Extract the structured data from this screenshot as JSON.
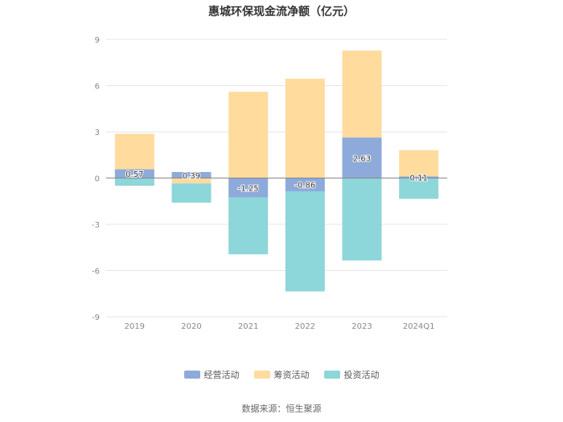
{
  "chart_data": {
    "type": "bar",
    "stacked": true,
    "title": "惠城环保现金流净额（亿元）",
    "xlabel": "",
    "ylabel": "",
    "categories": [
      "2019",
      "2020",
      "2021",
      "2022",
      "2023",
      "2024Q1"
    ],
    "ylim": [
      -9,
      9
    ],
    "yticks": [
      9,
      6,
      3,
      0,
      -3,
      -6,
      -9
    ],
    "grid": true,
    "legend_position": "bottom",
    "series": [
      {
        "name": "经营活动",
        "color": "#8eaadb",
        "values": [
          0.57,
          0.39,
          -1.25,
          -0.86,
          2.63,
          0.11
        ],
        "labels": [
          "0.57",
          "0.39",
          "-1.25",
          "-0.86",
          "2.63",
          "0.11"
        ]
      },
      {
        "name": "筹资活动",
        "color": "#ffdb9e",
        "values": [
          2.3,
          -0.35,
          5.6,
          6.45,
          5.65,
          1.7
        ]
      },
      {
        "name": "投资活动",
        "color": "#8dd6d9",
        "values": [
          -0.5,
          -1.25,
          -3.7,
          -6.5,
          -5.35,
          -1.35
        ]
      }
    ],
    "source": "数据来源：恒生聚源"
  }
}
